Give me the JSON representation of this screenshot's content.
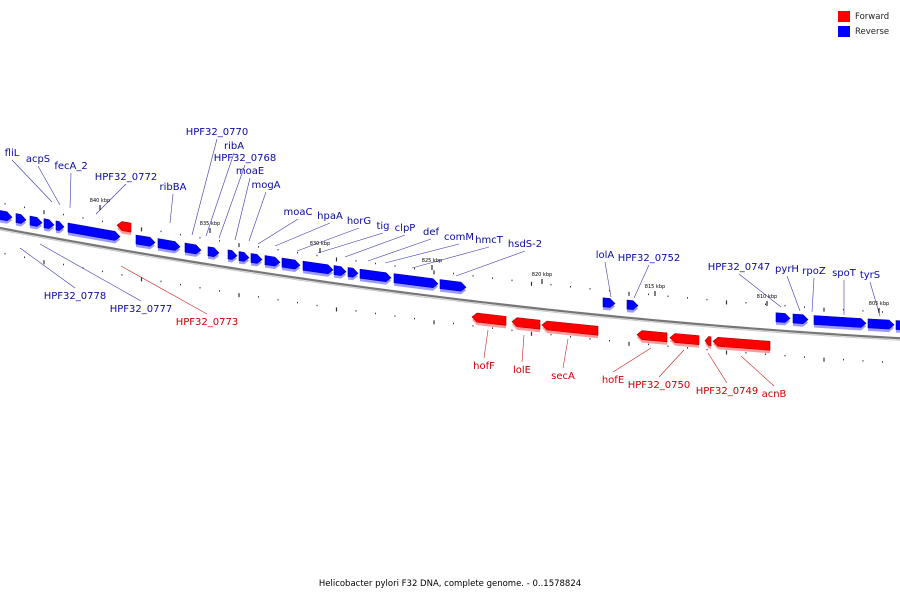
{
  "colors": {
    "forward": "#ff0000",
    "reverse": "#0000ff",
    "forward_label": "#cc0000",
    "reverse_label": "#0a0aa0",
    "backbone": "#777777"
  },
  "legend": [
    {
      "label": "Forward",
      "color": "#ff0000"
    },
    {
      "label": "Reverse",
      "color": "#0000ff"
    }
  ],
  "footer": "Helicobacter pylori F32 DNA, complete genome. - 0..1578824",
  "scale_labels": [
    "840 kbp",
    "835 kbp",
    "830 kbp",
    "825 kbp",
    "820 kbp",
    "815 kbp",
    "810 kbp",
    "805 kbp"
  ],
  "genes_reverse": [
    "fliL",
    "acpS",
    "fecA_2",
    "HPF32_0772",
    "ribBA",
    "HPF32_0770",
    "ribA",
    "HPF32_0768",
    "moaE",
    "mogA",
    "moaC",
    "hpaA",
    "horG",
    "tig",
    "clpP",
    "def",
    "comM",
    "hmcT",
    "hsdS-2",
    "lolA",
    "HPF32_0752",
    "HPF32_0747",
    "pyrH",
    "rpoZ",
    "spoT",
    "tyrS",
    "HPF32_0778",
    "HPF32_0777"
  ],
  "genes_forward": [
    "HPF32_0773",
    "hofF",
    "lolE",
    "secA",
    "hofE",
    "HPF32_0750",
    "HPF32_0749",
    "acnB"
  ]
}
